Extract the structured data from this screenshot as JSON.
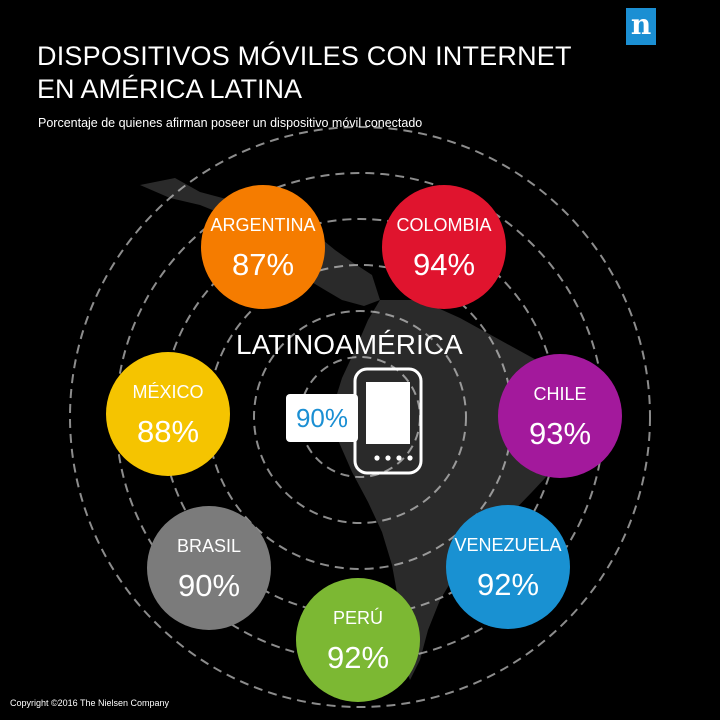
{
  "header": {
    "title_line1": "DISPOSITIVOS MÓVILES CON INTERNET",
    "title_line2": "EN AMÉRICA LATINA",
    "subtitle": "Porcentaje de quienes afirman poseer un dispositivo móvil conectado",
    "logo_letter": "n"
  },
  "center": {
    "label": "LATINOAMÉRICA",
    "value": "90%"
  },
  "footer": {
    "copyright": "Copyright ©2016 The Nielsen Company"
  },
  "colors": {
    "background": "#000000",
    "accent_blue": "#1b8fd3"
  },
  "icons": [
    "nielsen-logo-icon",
    "smartphone-icon",
    "latin-america-map-icon"
  ],
  "chart_data": {
    "type": "bubble",
    "title": "DISPOSITIVOS MÓVILES CON INTERNET EN AMÉRICA LATINA",
    "subtitle": "Porcentaje de quienes afirman poseer un dispositivo móvil conectado",
    "unit": "%",
    "overall": {
      "name": "LATINOAMÉRICA",
      "value": 90
    },
    "series": [
      {
        "name": "ARGENTINA",
        "value": 87,
        "color": "#f57c00"
      },
      {
        "name": "COLOMBIA",
        "value": 94,
        "color": "#e0142e"
      },
      {
        "name": "MÉXICO",
        "value": 88,
        "color": "#f5c400"
      },
      {
        "name": "CHILE",
        "value": 93,
        "color": "#a3199c"
      },
      {
        "name": "BRASIL",
        "value": 90,
        "color": "#7b7b7b"
      },
      {
        "name": "VENEZUELA",
        "value": 92,
        "color": "#1991d2"
      },
      {
        "name": "PERÚ",
        "value": 92,
        "color": "#7cb833"
      }
    ]
  }
}
